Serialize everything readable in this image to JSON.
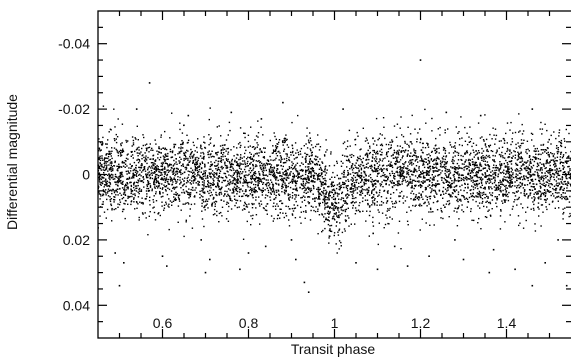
{
  "chart_data": {
    "type": "scatter",
    "title": "",
    "xlabel": "Transit phase",
    "ylabel": "Differential magnitude",
    "xlim": [
      0.45,
      1.55
    ],
    "ylim": [
      0.05,
      -0.05
    ],
    "y_axis_inverted": true,
    "grid": false,
    "legend": "none",
    "x_ticks": [
      {
        "value": 0.6,
        "label": "0.6"
      },
      {
        "value": 0.8,
        "label": "0.8"
      },
      {
        "value": 1.0,
        "label": "1"
      },
      {
        "value": 1.2,
        "label": "1.2"
      },
      {
        "value": 1.4,
        "label": "1.4"
      }
    ],
    "y_ticks": [
      {
        "value": -0.04,
        "label": "-0.04"
      },
      {
        "value": -0.02,
        "label": "-0.02"
      },
      {
        "value": 0,
        "label": "0"
      },
      {
        "value": 0.02,
        "label": "0.02"
      },
      {
        "value": 0.04,
        "label": "0.04"
      }
    ],
    "marker_color": "#000000",
    "points": [
      [
        0.46,
        0.001
      ],
      [
        0.47,
        0.003
      ],
      [
        0.48,
        -0.002
      ],
      [
        0.49,
        0.024
      ],
      [
        0.49,
        -0.004
      ],
      [
        0.5,
        0.034
      ],
      [
        0.5,
        0.002
      ],
      [
        0.51,
        0.027
      ],
      [
        0.52,
        -0.001
      ],
      [
        0.53,
        0.005
      ],
      [
        0.54,
        -0.02
      ],
      [
        0.55,
        0.002
      ],
      [
        0.56,
        -0.004
      ],
      [
        0.57,
        -0.028
      ],
      [
        0.58,
        0.003
      ],
      [
        0.59,
        0.012
      ],
      [
        0.6,
        0.025
      ],
      [
        0.61,
        0.028
      ],
      [
        0.62,
        -0.003
      ],
      [
        0.63,
        0.004
      ],
      [
        0.64,
        -0.001
      ],
      [
        0.65,
        0.002
      ],
      [
        0.66,
        -0.018
      ],
      [
        0.67,
        0.004
      ],
      [
        0.68,
        -0.002
      ],
      [
        0.69,
        0.02
      ],
      [
        0.7,
        0.03
      ],
      [
        0.71,
        0.026
      ],
      [
        0.72,
        0.003
      ],
      [
        0.73,
        -0.004
      ],
      [
        0.74,
        0.001
      ],
      [
        0.75,
        -0.002
      ],
      [
        0.76,
        -0.019
      ],
      [
        0.77,
        0.003
      ],
      [
        0.78,
        0.029
      ],
      [
        0.79,
        0.002
      ],
      [
        0.8,
        0.024
      ],
      [
        0.81,
        -0.003
      ],
      [
        0.82,
        0.001
      ],
      [
        0.83,
        -0.017
      ],
      [
        0.84,
        0.022
      ],
      [
        0.85,
        0.004
      ],
      [
        0.86,
        -0.002
      ],
      [
        0.87,
        0.003
      ],
      [
        0.88,
        -0.022
      ],
      [
        0.89,
        0.001
      ],
      [
        0.9,
        0.02
      ],
      [
        0.91,
        0.026
      ],
      [
        0.92,
        0.004
      ],
      [
        0.93,
        0.033
      ],
      [
        0.94,
        0.036
      ],
      [
        0.95,
        0.002
      ],
      [
        0.96,
        -0.003
      ],
      [
        0.97,
        0.003
      ],
      [
        0.98,
        0.006
      ],
      [
        0.99,
        0.01
      ],
      [
        1.0,
        0.012
      ],
      [
        1.01,
        0.013
      ],
      [
        1.02,
        0.011
      ],
      [
        1.02,
        -0.02
      ],
      [
        1.03,
        0.006
      ],
      [
        1.04,
        0.003
      ],
      [
        1.05,
        0.027
      ],
      [
        1.06,
        0.001
      ],
      [
        1.07,
        -0.002
      ],
      [
        1.08,
        0.004
      ],
      [
        1.09,
        0.018
      ],
      [
        1.1,
        0.029
      ],
      [
        1.11,
        -0.001
      ],
      [
        1.12,
        0.003
      ],
      [
        1.13,
        -0.003
      ],
      [
        1.14,
        0.022
      ],
      [
        1.15,
        0.002
      ],
      [
        1.16,
        -0.002
      ],
      [
        1.17,
        0.028
      ],
      [
        1.18,
        0.004
      ],
      [
        1.2,
        -0.035
      ],
      [
        1.21,
        0.001
      ],
      [
        1.22,
        0.025
      ],
      [
        1.23,
        -0.002
      ],
      [
        1.24,
        0.003
      ],
      [
        1.25,
        0.001
      ],
      [
        1.26,
        -0.019
      ],
      [
        1.27,
        0.004
      ],
      [
        1.28,
        0.02
      ],
      [
        1.29,
        -0.002
      ],
      [
        1.3,
        0.026
      ],
      [
        1.31,
        0.003
      ],
      [
        1.32,
        -0.001
      ],
      [
        1.33,
        0.002
      ],
      [
        1.34,
        -0.018
      ],
      [
        1.35,
        0.004
      ],
      [
        1.36,
        0.03
      ],
      [
        1.37,
        0.023
      ],
      [
        1.38,
        -0.002
      ],
      [
        1.39,
        0.003
      ],
      [
        1.4,
        -0.001
      ],
      [
        1.41,
        0.002
      ],
      [
        1.42,
        0.029
      ],
      [
        1.43,
        0.004
      ],
      [
        1.44,
        -0.003
      ],
      [
        1.45,
        0.001
      ],
      [
        1.46,
        0.034
      ],
      [
        1.46,
        -0.02
      ],
      [
        1.47,
        0.003
      ],
      [
        1.48,
        -0.002
      ],
      [
        1.49,
        0.027
      ],
      [
        1.5,
        0.002
      ],
      [
        1.51,
        -0.003
      ],
      [
        1.52,
        0.02
      ],
      [
        1.53,
        0.001
      ],
      [
        1.54,
        0.034
      ],
      [
        1.54,
        -0.004
      ]
    ],
    "point_cloud": {
      "description": "dense band of ~7000 photometric measurements",
      "center": 0,
      "spread": 0.006,
      "dip_center_phase": 1.0,
      "dip_depth": 0.01,
      "dip_halfwidth": 0.05
    }
  }
}
